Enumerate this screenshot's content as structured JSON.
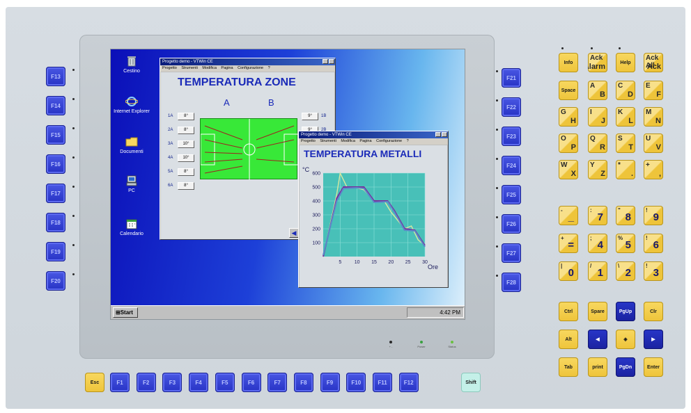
{
  "desktop": {
    "icons": [
      {
        "label": "Cestino"
      },
      {
        "label": "Internet Explorer"
      },
      {
        "label": "Documenti"
      },
      {
        "label": "PC"
      },
      {
        "label": "Calendario"
      }
    ],
    "taskbar": {
      "start_label": "Start",
      "clock": "4:42 PM"
    }
  },
  "window_zone": {
    "title": "Progetto demo - VTWin CE",
    "menu": [
      "Progetto",
      "Strumenti",
      "Modifica",
      "Pagina",
      "Configurazione",
      "?"
    ],
    "heading": "TEMPERATURA ZONE",
    "col_a": "A",
    "col_b": "B",
    "left_rows": [
      {
        "label": "1A",
        "value": "8°"
      },
      {
        "label": "2A",
        "value": "8°"
      },
      {
        "label": "3A",
        "value": "10°"
      },
      {
        "label": "4A",
        "value": "10°"
      },
      {
        "label": "5A",
        "value": "8°"
      },
      {
        "label": "6A",
        "value": "8°"
      }
    ],
    "right_rows": [
      {
        "label": "1B",
        "value": "9°"
      },
      {
        "label": "2B",
        "value": "9°"
      }
    ]
  },
  "window_metals": {
    "title": "Progetto demo - VTWin CE",
    "menu": [
      "Progetto",
      "Strumenti",
      "Modifica",
      "Pagina",
      "Configurazione",
      "?"
    ],
    "heading": "TEMPERATURA METALLI"
  },
  "chart_data": {
    "type": "line",
    "ylabel": "°C",
    "xlabel": "Ore",
    "xlim": [
      0,
      30
    ],
    "ylim": [
      0,
      600
    ],
    "x_ticks": [
      "5",
      "10",
      "15",
      "20",
      "25",
      "30"
    ],
    "y_ticks": [
      "100",
      "200",
      "300",
      "400",
      "500",
      "600"
    ],
    "grid": true,
    "series": [
      {
        "color": "#d8e8a0",
        "x": [
          0,
          4,
          5,
          7,
          9,
          12,
          15,
          18,
          20,
          24,
          26,
          28,
          30
        ],
        "y": [
          0,
          450,
          600,
          500,
          500,
          480,
          400,
          400,
          320,
          200,
          220,
          120,
          80
        ]
      },
      {
        "color": "#7a2a9a",
        "x": [
          0,
          4,
          6,
          10,
          12,
          15,
          19,
          21,
          24,
          27,
          30
        ],
        "y": [
          0,
          420,
          500,
          500,
          500,
          400,
          400,
          330,
          200,
          190,
          80
        ]
      },
      {
        "color": "#5a8ac8",
        "x": [
          0,
          4,
          6,
          10,
          12,
          15,
          19,
          21,
          24,
          27,
          30
        ],
        "y": [
          10,
          400,
          490,
          495,
          490,
          390,
          395,
          320,
          190,
          185,
          70
        ]
      }
    ]
  },
  "left_fkeys": [
    "F13",
    "F14",
    "F15",
    "F16",
    "F17",
    "F18",
    "F19",
    "F20"
  ],
  "right_fkeys": [
    "F21",
    "F22",
    "F23",
    "F24",
    "F25",
    "F26",
    "F27",
    "F28"
  ],
  "bottom_keys": {
    "esc": "Esc",
    "shift": "Shift",
    "fkeys": [
      "F1",
      "F2",
      "F3",
      "F4",
      "F5",
      "F6",
      "F7",
      "F8",
      "F9",
      "F10",
      "F11",
      "F12"
    ]
  },
  "leds": [
    {
      "label": "+ -",
      "color": "#2a2a2a"
    },
    {
      "label": "Power",
      "color": "#3aa040"
    },
    {
      "label": "Status",
      "color": "#6ac040"
    }
  ],
  "keypad": {
    "row1": [
      {
        "main": "Info"
      },
      {
        "tl": "Ack",
        "br": "Alarm"
      },
      {
        "main": "Help"
      },
      {
        "tl": "Ack All",
        "br": "Ack"
      }
    ],
    "letters": [
      [
        {
          "main": "Space"
        },
        {
          "tl": "A",
          "br": "B"
        },
        {
          "tl": "C",
          "br": "D"
        },
        {
          "tl": "E",
          "br": "F"
        }
      ],
      [
        {
          "tl": "G",
          "br": "H"
        },
        {
          "tl": "I",
          "br": "J"
        },
        {
          "tl": "K",
          "br": "L"
        },
        {
          "tl": "M",
          "br": "N"
        }
      ],
      [
        {
          "tl": "O",
          "br": "P"
        },
        {
          "tl": "Q",
          "br": "R"
        },
        {
          "tl": "S",
          "br": "T"
        },
        {
          "tl": "U",
          "br": "V"
        }
      ],
      [
        {
          "tl": "W",
          "br": "X"
        },
        {
          "tl": "Y",
          "br": "Z"
        },
        {
          "tl": "*",
          "br": "."
        },
        {
          "tl": "+",
          "br": ","
        }
      ]
    ],
    "numbers": [
      [
        {
          "tl": "-",
          "br": "_"
        },
        {
          "tl": ":",
          "br": "7"
        },
        {
          "tl": "\"",
          "br": "8"
        },
        {
          "tl": "!",
          "br": "9"
        }
      ],
      [
        {
          "tl": "+",
          "br": "="
        },
        {
          "tl": ";",
          "br": "4"
        },
        {
          "tl": "%",
          "br": "5"
        },
        {
          "tl": "!",
          "br": "6"
        }
      ],
      [
        {
          "tl": "|",
          "br": "0"
        },
        {
          "tl": "/",
          "br": "1"
        },
        {
          "tl": "\\",
          "br": "2"
        },
        {
          "tl": "!",
          "br": "3"
        }
      ]
    ],
    "ctrl": [
      [
        {
          "main": "Ctrl"
        },
        {
          "main": "Spare"
        },
        {
          "main": "PgUp"
        },
        {
          "main": "Clr"
        }
      ],
      [
        {
          "main": "Alt"
        },
        {
          "main": "◀"
        },
        {
          "main": "◈"
        },
        {
          "main": "▶"
        }
      ],
      [
        {
          "main": "Tab"
        },
        {
          "main": "print"
        },
        {
          "main": "PgDn"
        },
        {
          "main": "Enter"
        }
      ]
    ]
  }
}
